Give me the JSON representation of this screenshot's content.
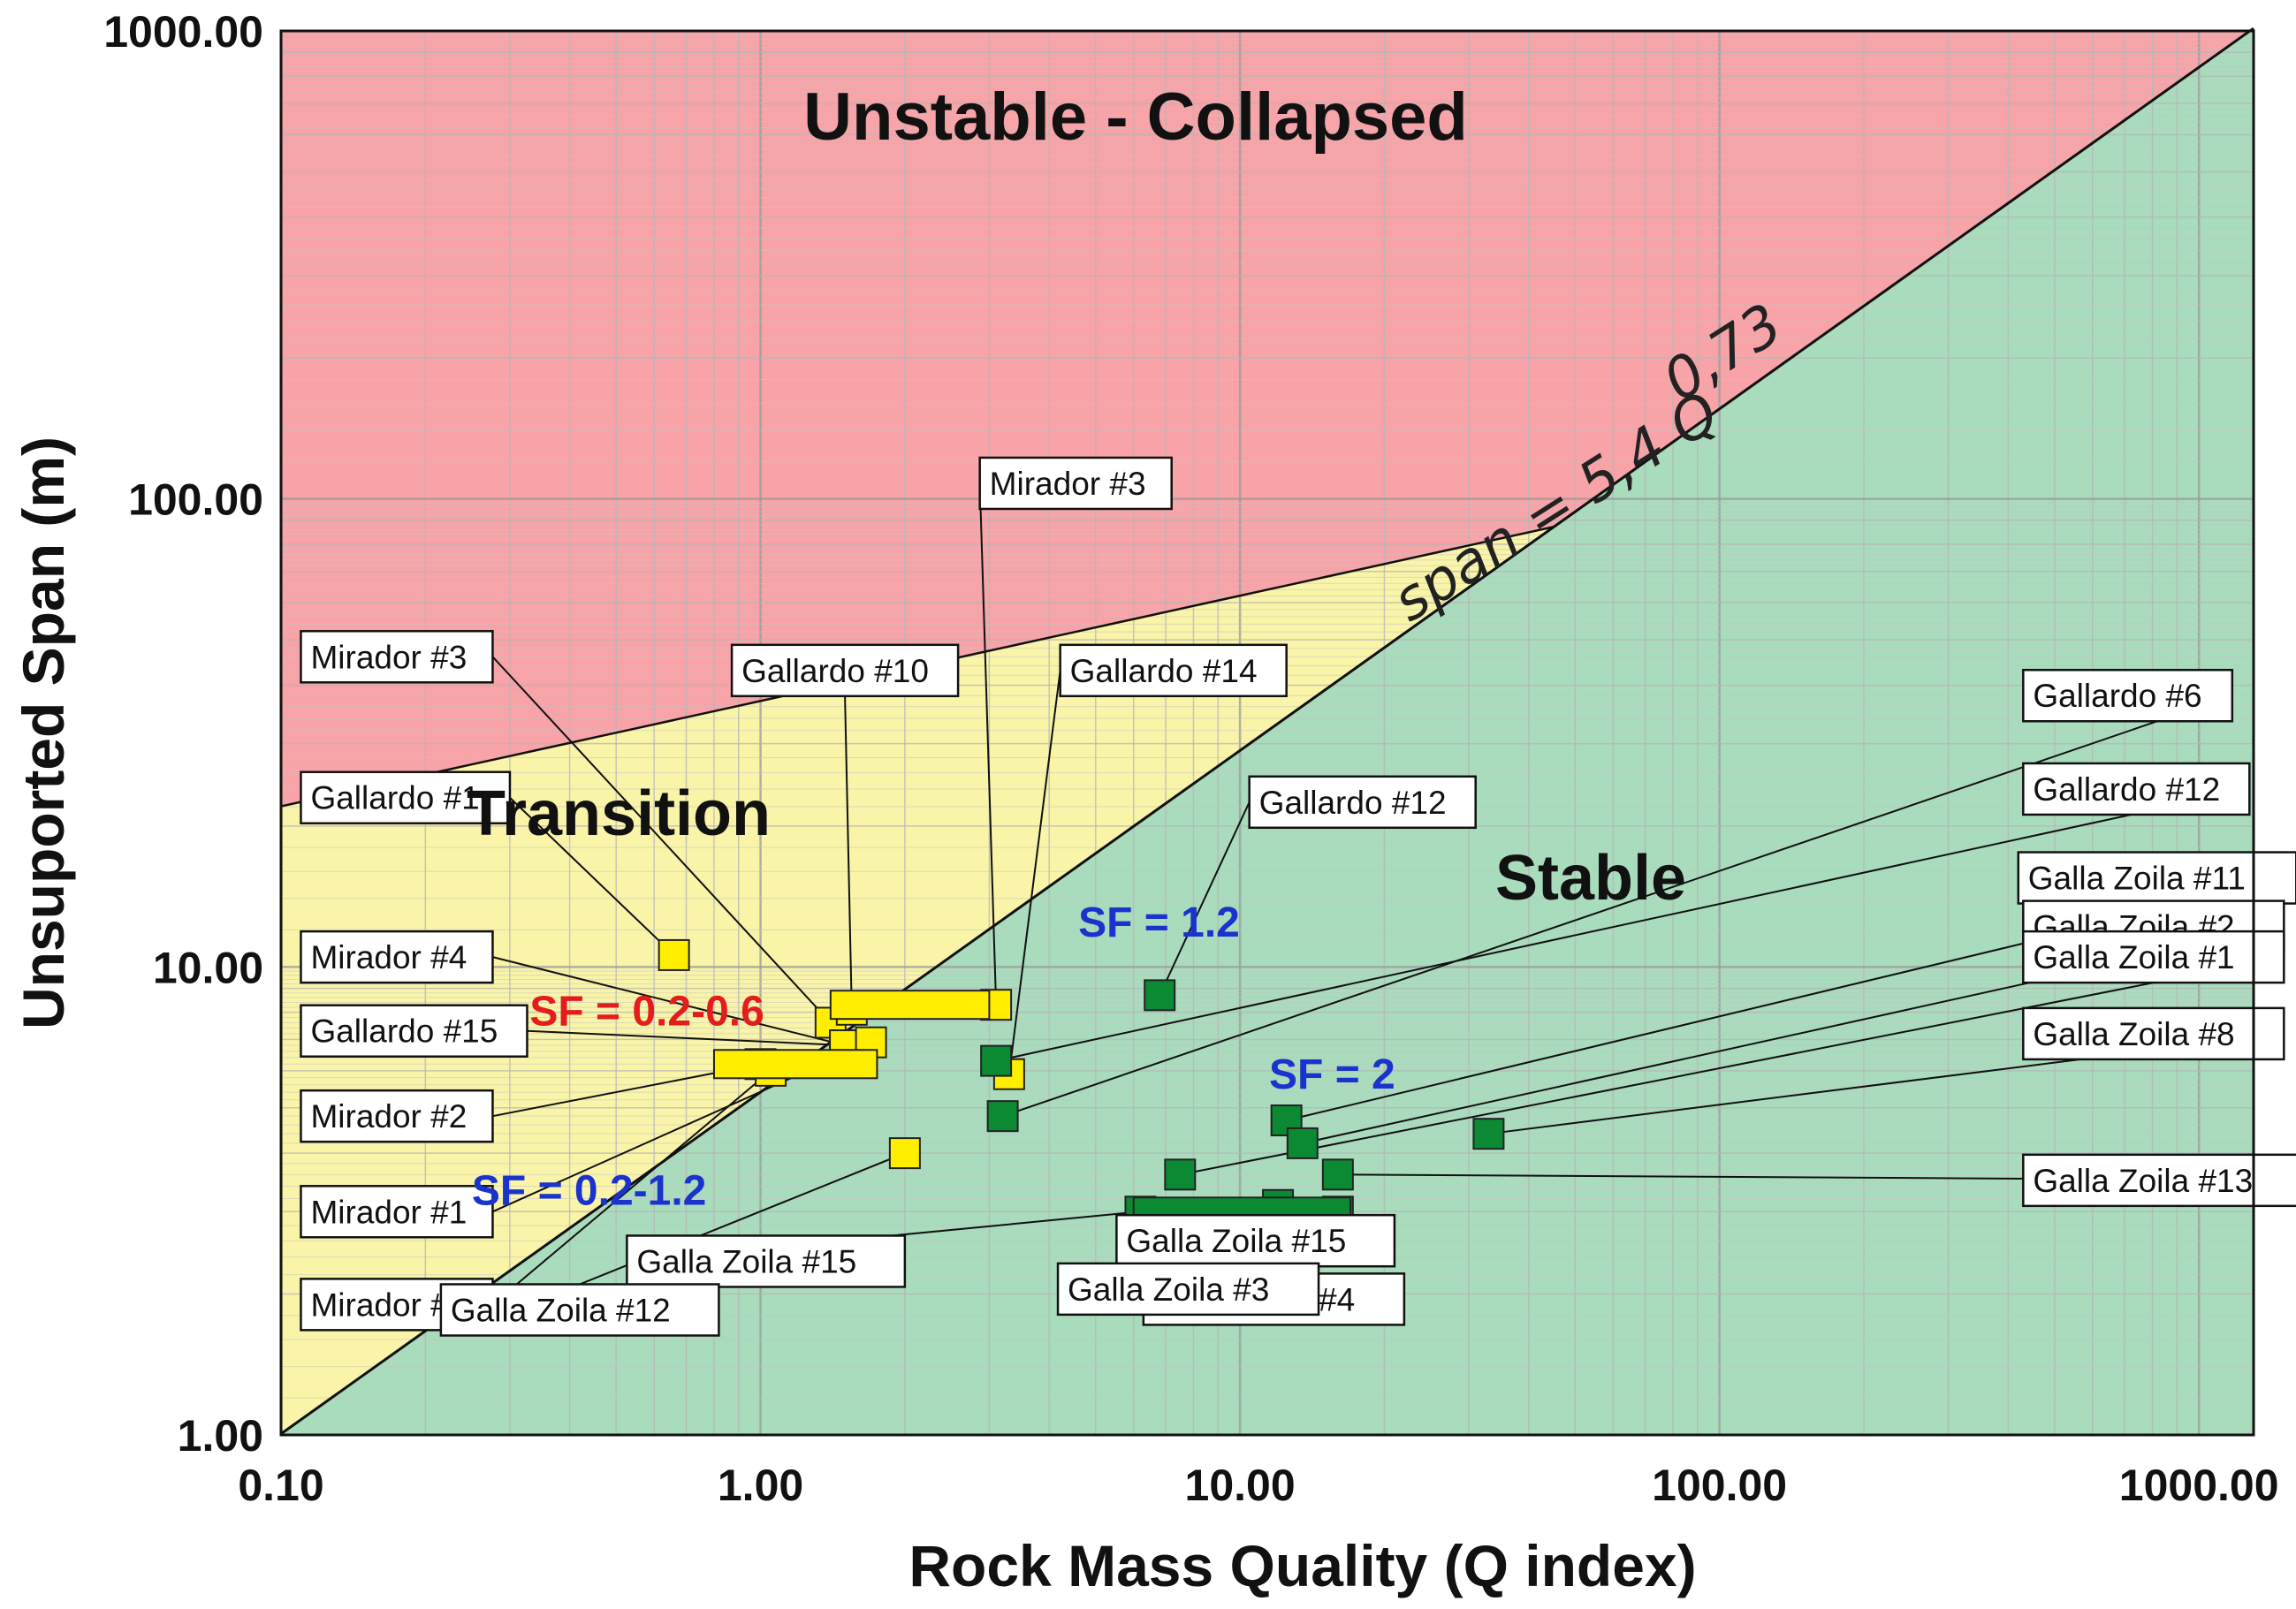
{
  "chart_data": {
    "type": "scatter",
    "xscale": "log",
    "yscale": "log",
    "xlabel": "Rock Mass Quality (Q index)",
    "ylabel": "Unsuported Span (m)",
    "xlim": [
      0.1,
      1300
    ],
    "ylim": [
      1,
      1000
    ],
    "xticks": [
      "0.10",
      "1.00",
      "10.00",
      "100.00",
      "1000.00"
    ],
    "yticks": [
      "1.00",
      "10.00",
      "100.00",
      "1000.00"
    ],
    "regions": {
      "collapsed": "Unstable - Collapsed",
      "transition": "Transition",
      "stable": "Stable"
    },
    "equation": {
      "main": "span = 5,4 Q",
      "exponent": "0,73"
    },
    "sf_labels": [
      {
        "text": "SF = 0.2-0.6",
        "color": "#e41c1c",
        "q": 0.33,
        "span": 7.5
      },
      {
        "text": "SF = 1.2",
        "color": "#1a33cc",
        "q": 4.6,
        "span": 11.6
      },
      {
        "text": "SF = 2",
        "color": "#1a33cc",
        "q": 11.5,
        "span": 5.5
      },
      {
        "text": "SF = 0.2-1.2",
        "color": "#1a33cc",
        "q": 0.25,
        "span": 3.1
      }
    ],
    "points": [
      {
        "label": "Gallardo #1",
        "q": 0.66,
        "span": 10.6,
        "group": "transition",
        "lq": 0.11,
        "ls": 23,
        "anchor": "end"
      },
      {
        "label": "Mirador #3",
        "q": 1.4,
        "span": 7.6,
        "group": "transition",
        "lq": 0.11,
        "ls": 46,
        "anchor": "end"
      },
      {
        "label": "Gallardo #10",
        "q": 1.55,
        "span": 8.1,
        "group": "transition",
        "lq": 1.5,
        "ls": 43,
        "anchor": "center"
      },
      {
        "label": "Mirador #3",
        "q": 3.1,
        "span": 8.3,
        "group": "transition",
        "lq": 7.2,
        "ls": 108,
        "anchor": "start"
      },
      {
        "label": "Gallardo #14",
        "q": 3.3,
        "span": 5.9,
        "group": "transition",
        "lq": 12.5,
        "ls": 43,
        "anchor": "start"
      },
      {
        "label": "Mirador #4",
        "q": 1.5,
        "span": 6.8,
        "group": "transition",
        "lq": 0.11,
        "ls": 10.5,
        "anchor": "end"
      },
      {
        "label": "Gallardo #15",
        "q": 1.5,
        "span": 6.8,
        "group": "transition",
        "lq": 0.11,
        "ls": 7.3,
        "anchor": "end"
      },
      {
        "label": "Mirador #2",
        "q": 1.0,
        "span": 6.2,
        "group": "transition",
        "lq": 0.11,
        "ls": 4.8,
        "anchor": "end"
      },
      {
        "label": "Mirador #1",
        "q": 1.7,
        "span": 6.9,
        "group": "transition",
        "lq": 0.11,
        "ls": 3.0,
        "anchor": "end"
      },
      {
        "label": "Mirador #2",
        "q": 1.05,
        "span": 6.0,
        "group": "transition",
        "lq": 0.11,
        "ls": 1.9,
        "anchor": "end"
      },
      {
        "label": "Gallardo #12",
        "q": 6.8,
        "span": 8.7,
        "group": "stable",
        "lq": 31,
        "ls": 22.5,
        "anchor": "start"
      },
      {
        "label": "Gallardo #6",
        "q": 3.2,
        "span": 4.8,
        "group": "stable",
        "lq": 430,
        "ls": 38,
        "anchor": "end"
      },
      {
        "label": "Gallardo #12",
        "q": 3.1,
        "span": 6.3,
        "group": "stable",
        "lq": 430,
        "ls": 24,
        "anchor": "end"
      },
      {
        "label": "Galla Zoila #11",
        "q": 12.5,
        "span": 4.7,
        "group": "stable",
        "lq": 420,
        "ls": 15.5,
        "anchor": "end"
      },
      {
        "label": "Galla Zoila #2",
        "q": 13.5,
        "span": 4.2,
        "group": "stable",
        "lq": 430,
        "ls": 12.2,
        "anchor": "end"
      },
      {
        "label": "Galla Zoila #1",
        "q": 7.5,
        "span": 3.6,
        "group": "stable",
        "lq": 430,
        "ls": 10.5,
        "anchor": "end"
      },
      {
        "label": "Galla Zoila #8",
        "q": 33,
        "span": 4.4,
        "group": "stable",
        "lq": 430,
        "ls": 7.2,
        "anchor": "end"
      },
      {
        "label": "Galla Zoila #13",
        "q": 16,
        "span": 3.6,
        "group": "stable",
        "lq": 430,
        "ls": 3.5,
        "anchor": "end"
      },
      {
        "label": "Galla Zoila #15",
        "q": 16,
        "span": 3.0,
        "group": "stable",
        "lq": 21,
        "ls": 2.6,
        "anchor": "start"
      },
      {
        "label": "Galla Zoila #4",
        "q": 12,
        "span": 3.1,
        "group": "stable",
        "lq": 22,
        "ls": 1.95,
        "anchor": "start"
      },
      {
        "label": "Galla Zoila #3",
        "q": 11.5,
        "span": 2.6,
        "group": "stable",
        "lq": 7.8,
        "ls": 2.05,
        "anchor": "center"
      },
      {
        "label": "Galla Zoila #15",
        "q": 6.2,
        "span": 3.0,
        "group": "stable",
        "lq": 2.0,
        "ls": 2.35,
        "anchor": "start"
      },
      {
        "label": "Galla Zoila #12",
        "q": 2.0,
        "span": 4.0,
        "group": "transition",
        "lq": 0.42,
        "ls": 1.85,
        "anchor": "center"
      }
    ],
    "ranges": [
      {
        "q_min": 1.4,
        "q_max": 3.0,
        "span": 8.3,
        "group": "transition"
      },
      {
        "q_min": 0.8,
        "q_max": 1.75,
        "span": 6.2,
        "group": "transition"
      },
      {
        "q_min": 6.0,
        "q_max": 17,
        "span": 3.0,
        "group": "stable"
      }
    ],
    "colors": {
      "collapsed": "#f7a3a8",
      "transition": "#f9f4a8",
      "stable": "#a9dbbd",
      "transition_marker": "#ffee00",
      "stable_marker": "#0c8a33"
    }
  }
}
